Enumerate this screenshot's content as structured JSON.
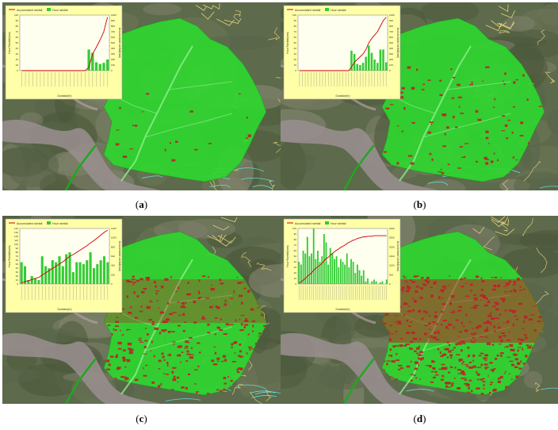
{
  "panels": [
    {
      "caption_letter": "a",
      "legend": {
        "line": "Accumulated rainfall",
        "bar": "Hour rainfall"
      },
      "ylabel_left": "Hour Rainfall(mm)",
      "ylabel_right": "Accumulated rainfall(mm)",
      "xlabel": "Duration(hr)",
      "left_ticks": [
        "0",
        "10",
        "20",
        "30",
        "40",
        "50",
        "60",
        "70",
        "80",
        "90",
        "100"
      ],
      "right_ticks": [
        "0",
        "100",
        "200",
        "300",
        "400",
        "500",
        "600",
        "700",
        "800",
        "900",
        "1000"
      ],
      "hour_rain": [
        0,
        0,
        0,
        0,
        0,
        0,
        0,
        0,
        0,
        0,
        0,
        0,
        0,
        0,
        0,
        0,
        0,
        0,
        38,
        32,
        15,
        12,
        14,
        20
      ],
      "accum_frac": [
        0,
        0,
        0,
        0,
        0,
        0,
        0,
        0,
        0,
        0,
        0,
        0,
        0,
        0,
        0,
        0,
        0,
        0,
        0.06,
        0.3,
        0.42,
        0.55,
        0.7,
        0.96
      ],
      "landslide_level": 1
    },
    {
      "caption_letter": "b",
      "legend": {
        "line": "Accumulated rainfall",
        "bar": "Hour rainfall"
      },
      "ylabel_left": "Hour Rainfall(mm)",
      "ylabel_right": "Accumulated rainfall(mm)",
      "xlabel": "Duration(hr)",
      "left_ticks": [
        "0",
        "10",
        "20",
        "30",
        "40",
        "50",
        "60",
        "70",
        "80",
        "90",
        "100"
      ],
      "right_ticks": [
        "0",
        "100",
        "200",
        "300",
        "400",
        "500",
        "600",
        "700",
        "800",
        "900",
        "1000"
      ],
      "hour_rain": [
        0,
        0,
        0,
        0,
        0,
        0,
        0,
        0,
        0,
        0,
        0,
        0,
        0,
        0,
        0,
        0,
        0,
        0,
        36,
        30,
        12,
        10,
        14,
        25,
        45,
        32,
        20,
        14,
        38,
        38,
        15
      ],
      "accum_frac": [
        0,
        0,
        0,
        0,
        0,
        0,
        0,
        0,
        0,
        0,
        0,
        0,
        0,
        0,
        0,
        0,
        0,
        0,
        0.06,
        0.15,
        0.2,
        0.25,
        0.3,
        0.38,
        0.5,
        0.58,
        0.64,
        0.7,
        0.8,
        0.9,
        0.96
      ],
      "landslide_level": 2
    },
    {
      "caption_letter": "c",
      "legend": {
        "line": "Accumulated rainfall",
        "bar": "Hour rainfall"
      },
      "ylabel_left": "Hour Rainfall(mm)",
      "ylabel_right": "Accumulated rainfall(mm)",
      "xlabel": "Duration(hr)",
      "left_ticks": [
        "0",
        "10",
        "20",
        "30",
        "40",
        "50",
        "60",
        "70",
        "80",
        "90",
        "100",
        "110",
        "120",
        "130",
        "140"
      ],
      "right_ticks": [
        "0",
        "200",
        "400",
        "600",
        "800",
        "1000",
        "1200"
      ],
      "hour_rain": [
        55,
        45,
        10,
        20,
        15,
        10,
        70,
        45,
        40,
        60,
        55,
        70,
        45,
        75,
        80,
        30,
        55,
        55,
        50,
        60,
        80,
        40,
        50,
        60,
        70,
        55
      ],
      "accum_frac": [
        0.02,
        0.04,
        0.06,
        0.08,
        0.1,
        0.12,
        0.16,
        0.2,
        0.24,
        0.28,
        0.32,
        0.36,
        0.4,
        0.45,
        0.5,
        0.53,
        0.57,
        0.61,
        0.65,
        0.69,
        0.74,
        0.78,
        0.83,
        0.88,
        0.93,
        0.97
      ],
      "landslide_level": 3
    },
    {
      "caption_letter": "d",
      "legend": {
        "line": "Accumulated rainfall",
        "bar": "Hour rainfall"
      },
      "ylabel_left": "Hour Rainfall(mm)",
      "ylabel_right": "Accumulated rainfall(mm)",
      "xlabel": "Duration(hr)",
      "left_ticks": [
        "0",
        "10",
        "20",
        "30",
        "40",
        "50",
        "60",
        "70",
        "80",
        "90",
        "100"
      ],
      "right_ticks": [
        "0",
        "500",
        "1000",
        "1500",
        "2000",
        "2500",
        "3000"
      ],
      "hour_rain": [
        40,
        35,
        60,
        55,
        85,
        50,
        55,
        100,
        45,
        60,
        40,
        50,
        90,
        75,
        35,
        65,
        55,
        45,
        50,
        30,
        45,
        40,
        35,
        55,
        30,
        45,
        40,
        20,
        35,
        25,
        15,
        25,
        5,
        10,
        0,
        5,
        8,
        5,
        0,
        3,
        5,
        0,
        8
      ],
      "accum_frac": [
        0.02,
        0.04,
        0.07,
        0.1,
        0.14,
        0.17,
        0.2,
        0.25,
        0.28,
        0.31,
        0.34,
        0.37,
        0.42,
        0.46,
        0.48,
        0.52,
        0.55,
        0.58,
        0.61,
        0.63,
        0.66,
        0.68,
        0.7,
        0.73,
        0.75,
        0.77,
        0.79,
        0.8,
        0.82,
        0.83,
        0.84,
        0.85,
        0.85,
        0.86,
        0.86,
        0.86,
        0.87,
        0.87,
        0.87,
        0.87,
        0.87,
        0.87,
        0.87
      ],
      "landslide_level": 4
    }
  ],
  "colors": {
    "watershed": "#2fd62f",
    "landslide": "#c01f2a",
    "inset_bg": "#ffffa8",
    "bar": "#33cc33",
    "line": "#cc0000",
    "river": "#66e6e6",
    "contour": "#e6d27a"
  }
}
